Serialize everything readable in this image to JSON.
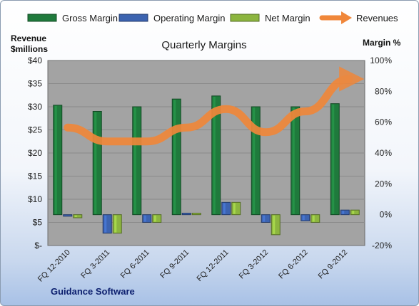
{
  "chart_data": {
    "type": "bar",
    "title": "Quarterly Margins",
    "left_axis_title_line1": "Revenue",
    "left_axis_title_line2": "$millions",
    "right_axis_title": "Margin %",
    "footer": "Guidance Software",
    "categories": [
      "FQ 12-2010",
      "FQ 3-2011",
      "FQ 6-2011",
      "FQ 9-2011",
      "FQ 12-2011",
      "FQ 3-2012",
      "FQ 6-2012",
      "FQ 9-2012"
    ],
    "left_axis": {
      "min": 0,
      "max": 40,
      "step": 5,
      "tick_labels": [
        "$-",
        "$5",
        "$10",
        "$15",
        "$20",
        "$25",
        "$30",
        "$35",
        "$40"
      ]
    },
    "right_axis": {
      "min": -20,
      "max": 100,
      "step": 20,
      "tick_labels": [
        "-20%",
        "0%",
        "20%",
        "40%",
        "60%",
        "80%",
        "100%"
      ]
    },
    "series": [
      {
        "name": "Gross Margin",
        "axis": "right",
        "kind": "bar",
        "color": "#1f7a3c",
        "values": [
          71,
          67,
          70,
          75,
          77,
          70,
          70,
          72
        ]
      },
      {
        "name": "Operating Margin",
        "axis": "right",
        "kind": "bar",
        "color": "#3c63b0",
        "values": [
          -1,
          -12,
          -5,
          1,
          8,
          -5,
          -4,
          3
        ]
      },
      {
        "name": "Net Margin",
        "axis": "right",
        "kind": "bar",
        "color": "#8cb53f",
        "values": [
          -2,
          -12,
          -5,
          1,
          8,
          -13,
          -5,
          3
        ]
      },
      {
        "name": "Revenues",
        "axis": "left",
        "kind": "line",
        "color": "#f0873a",
        "values": [
          25.5,
          22.5,
          22.5,
          25.5,
          29.5,
          24.5,
          29,
          36
        ]
      }
    ],
    "legend_position": "top",
    "grid": true
  }
}
